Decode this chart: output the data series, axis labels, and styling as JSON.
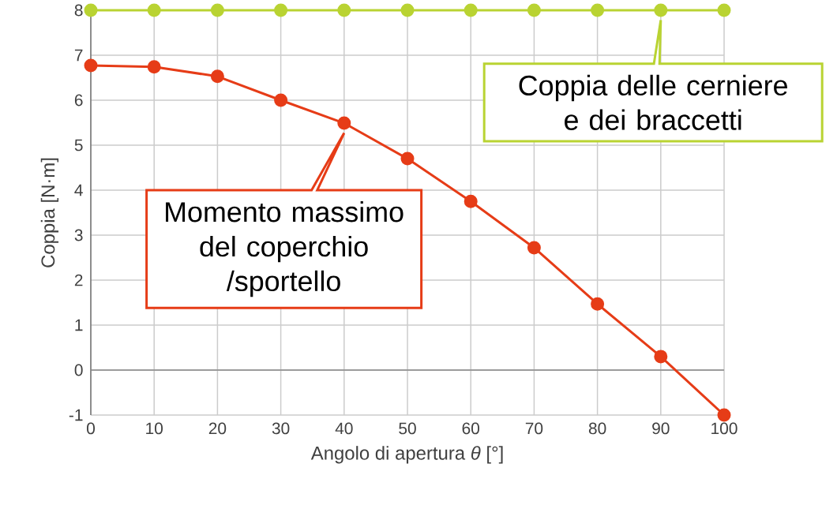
{
  "chart_data": {
    "type": "line",
    "xlabel": "Angolo di apertura *θ* [°]",
    "ylabel": "Coppia [N·m]",
    "x": [
      0,
      10,
      20,
      30,
      40,
      50,
      60,
      70,
      80,
      90,
      100
    ],
    "series": [
      {
        "color": "#b9d332",
        "values": [
          8,
          8,
          8,
          8,
          8,
          8,
          8,
          8,
          8,
          8,
          8
        ]
      },
      {
        "color": "#e63c17",
        "values": [
          6.77,
          6.74,
          6.53,
          6.0,
          5.49,
          4.7,
          3.75,
          2.72,
          1.47,
          0.3,
          -1.0
        ]
      }
    ],
    "xlim": [
      0,
      100
    ],
    "ylim": [
      -1,
      8
    ],
    "xticks": [
      0,
      10,
      20,
      30,
      40,
      50,
      60,
      70,
      80,
      90,
      100
    ],
    "yticks": [
      -1,
      0,
      1,
      2,
      3,
      4,
      5,
      6,
      7,
      8
    ],
    "grid": true,
    "marker": "circle",
    "line_style": "solid",
    "ref_lines": [
      {
        "axis": "y",
        "value": 0,
        "color": "#888888"
      }
    ],
    "annotations": [
      {
        "text": "Momento massimo del coperchio /sportello",
        "x": 40,
        "y": 5.49
      },
      {
        "text": "Coppia delle cerniere e dei braccetti",
        "x": 90,
        "y": 8
      }
    ]
  }
}
